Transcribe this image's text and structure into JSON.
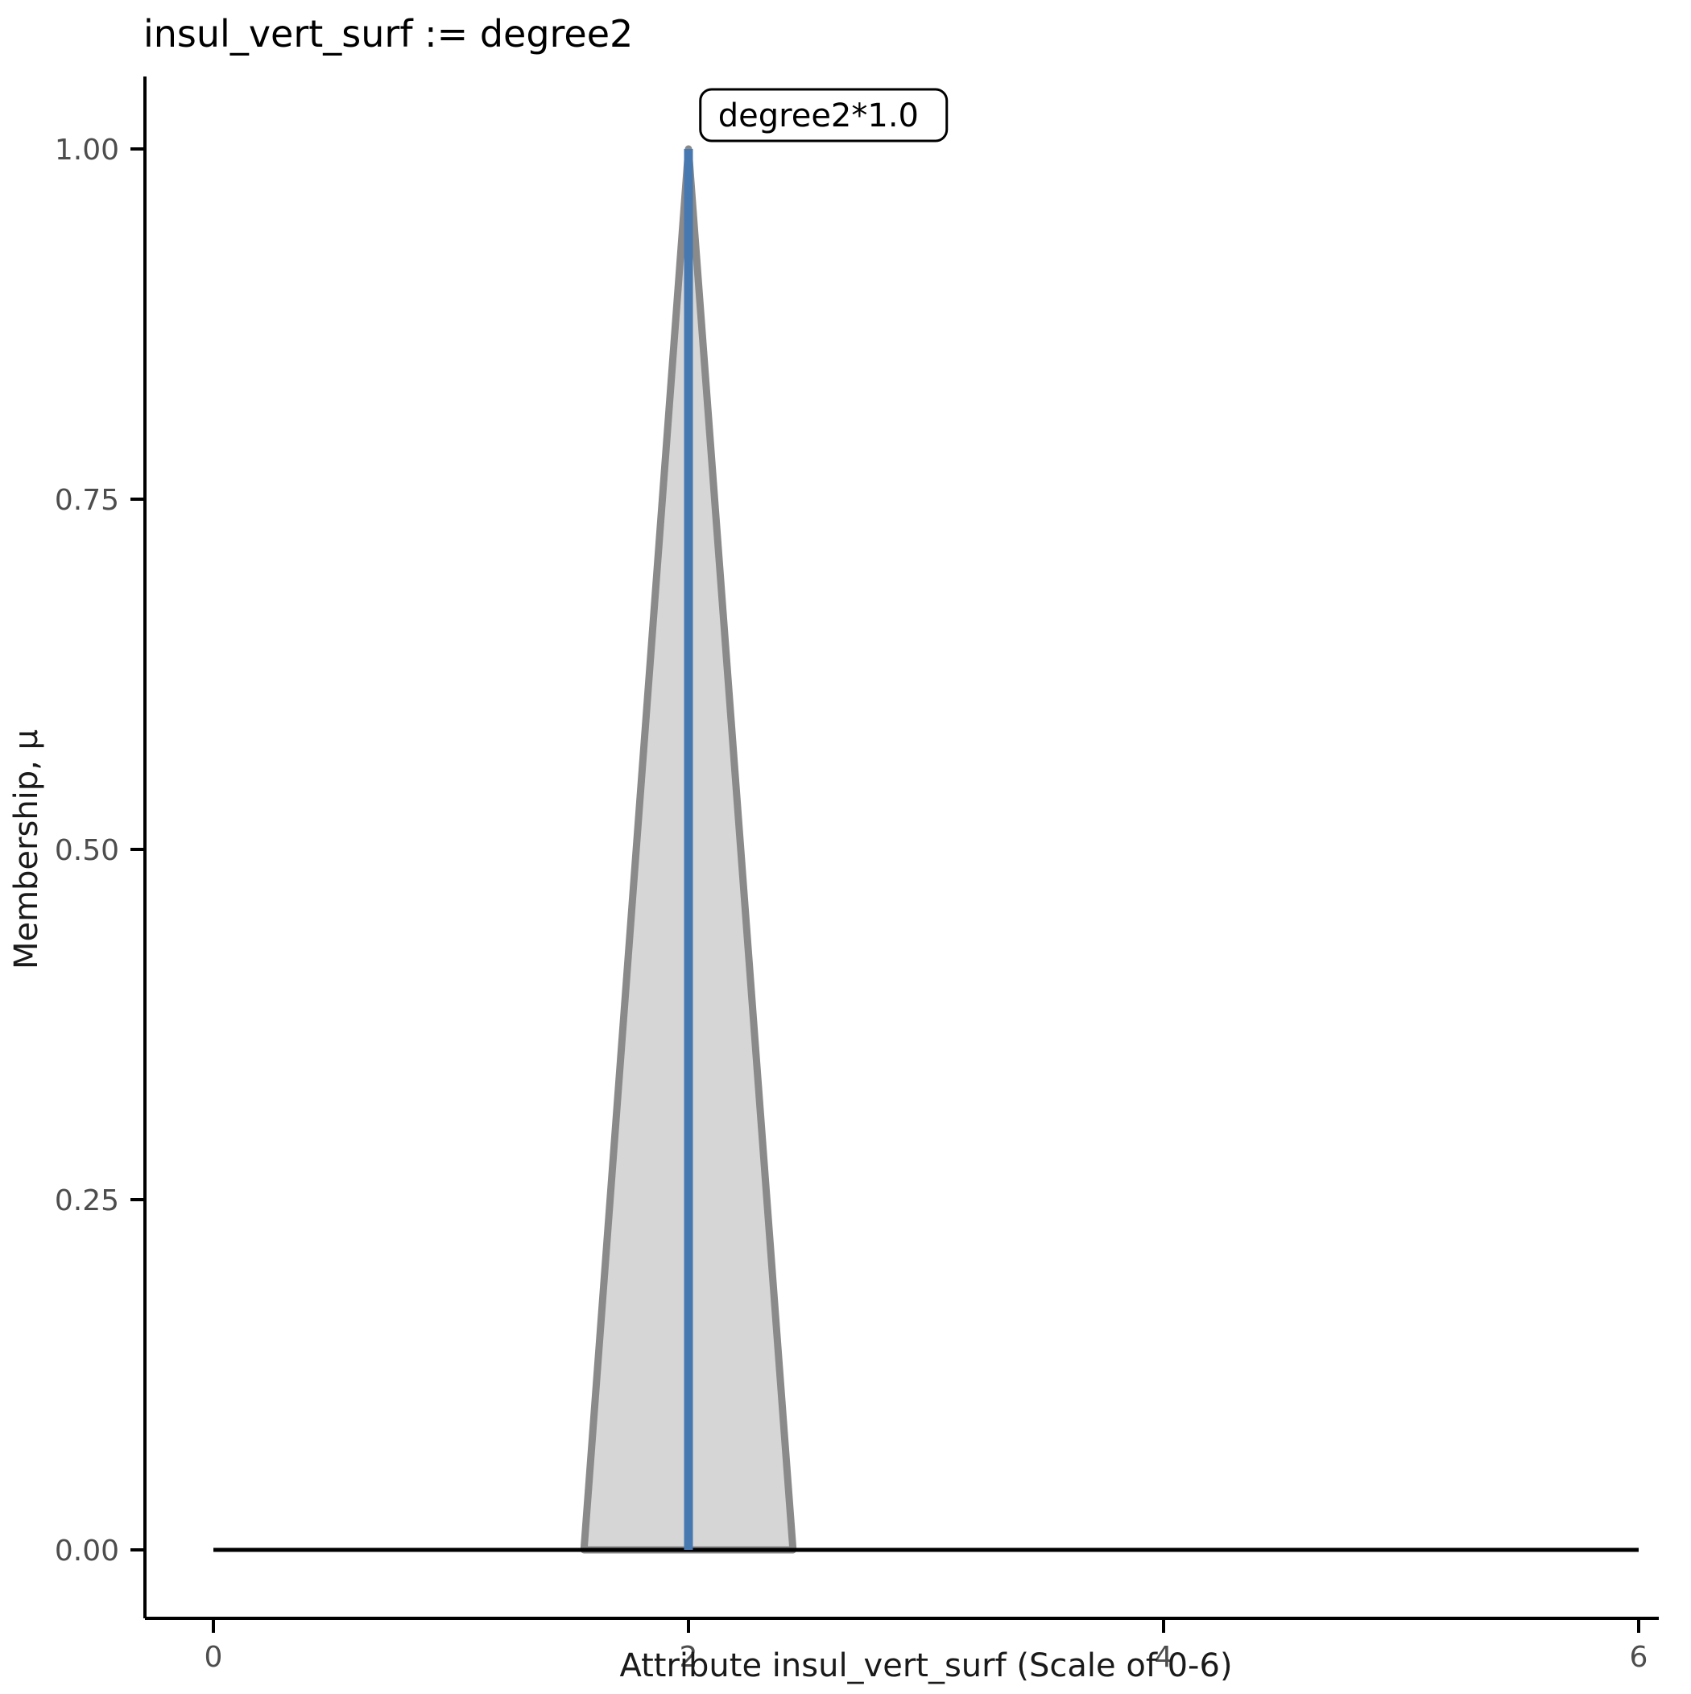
{
  "chart_data": {
    "type": "area",
    "title": "insul_vert_surf := degree2",
    "xlabel": "Attribute insul_vert_surf (Scale of 0-6)",
    "ylabel": "Membership, μ",
    "xlim": [
      0,
      6
    ],
    "ylim": [
      0,
      1
    ],
    "grid": false,
    "legend": "none",
    "x_ticks": [
      0,
      2,
      4,
      6
    ],
    "x_tick_labels": [
      "0",
      "2",
      "4",
      "6"
    ],
    "y_ticks": [
      0.0,
      0.25,
      0.5,
      0.75,
      1.0
    ],
    "y_tick_labels": [
      "0.00",
      "0.25",
      "0.50",
      "0.75",
      "1.00"
    ],
    "series": [
      {
        "name": "membership-function-triangle",
        "kind": "polygon",
        "points": [
          [
            1.56,
            0
          ],
          [
            2.0,
            1.0
          ],
          [
            2.44,
            0
          ]
        ],
        "fill": "#d6d6d6",
        "stroke": "#8a8a8a",
        "stroke_width": 9
      },
      {
        "name": "zero-membership-baseline",
        "kind": "line",
        "points": [
          [
            0,
            0
          ],
          [
            6,
            0
          ]
        ],
        "stroke": "#000000",
        "stroke_width": 5
      },
      {
        "name": "crisp-input-value",
        "kind": "vline",
        "x": 2.0,
        "y0": 0,
        "y1": 1.0,
        "stroke": "#4878b0",
        "stroke_width": 11
      }
    ],
    "annotation": {
      "text": "degree2*1.0",
      "x": 2.05,
      "y": 1.0
    },
    "colors": {
      "axis": "#000000",
      "tick_label": "#4d4d4d",
      "triangle_fill": "#d6d6d6",
      "triangle_stroke": "#8a8a8a",
      "value_line": "#4878b0"
    }
  }
}
